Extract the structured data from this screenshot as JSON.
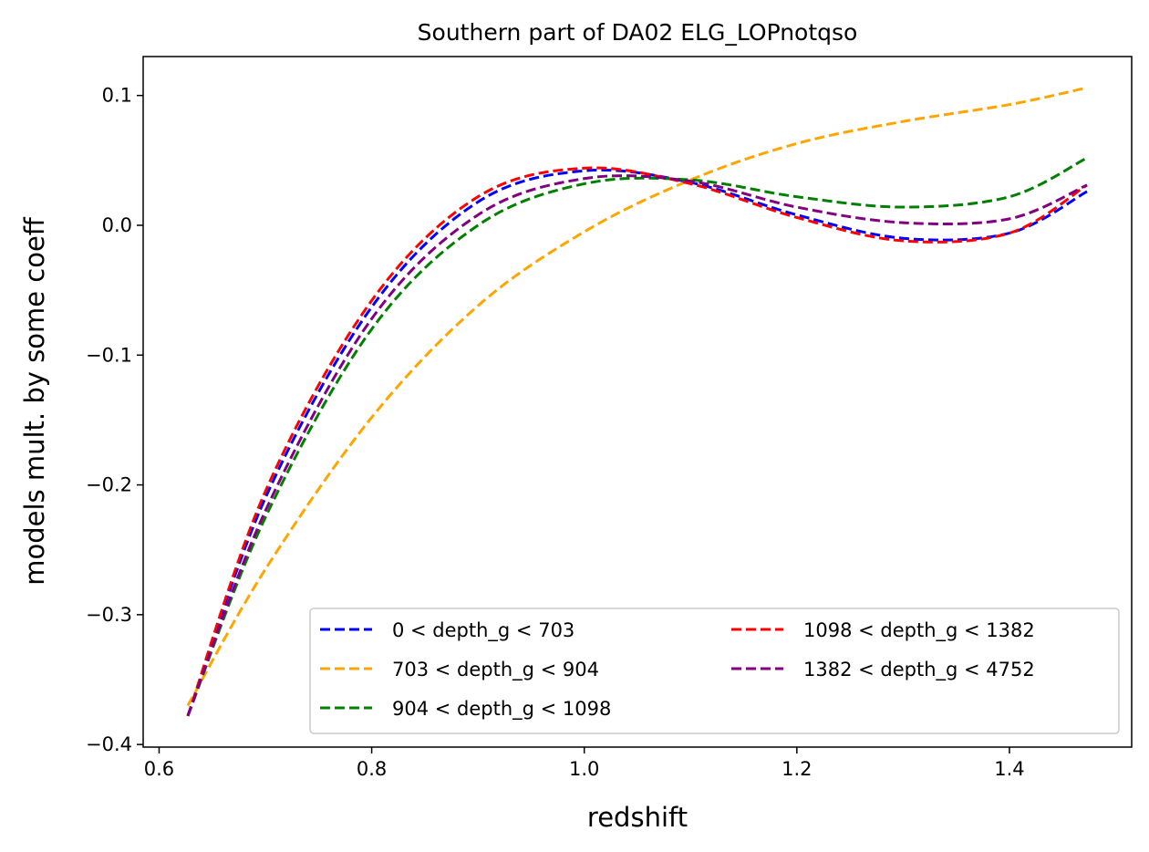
{
  "chart_data": {
    "type": "line",
    "title": "Southern part of DA02 ELG_LOPnotqso",
    "xlabel": "redshift",
    "ylabel": "models mult. by some coeff",
    "xlim": [
      0.585,
      1.515
    ],
    "ylim": [
      -0.402,
      0.13
    ],
    "xticks": [
      0.6,
      0.8,
      1.0,
      1.2,
      1.4
    ],
    "xtick_labels": [
      "0.6",
      "0.8",
      "1.0",
      "1.2",
      "1.4"
    ],
    "yticks": [
      -0.4,
      -0.3,
      -0.2,
      -0.1,
      0.0,
      0.1
    ],
    "ytick_labels": [
      "−0.4",
      "−0.3",
      "−0.2",
      "−0.1",
      "0.0",
      "0.1"
    ],
    "grid": false,
    "line_style": "dashed",
    "legend": {
      "location": "lower-right",
      "columns": 2
    },
    "x": [
      0.627,
      0.7,
      0.8,
      0.9,
      1.0,
      1.1,
      1.2,
      1.3,
      1.4,
      1.473
    ],
    "series": [
      {
        "name": "0 < depth_g < 703",
        "color": "#0000ff",
        "values": [
          -0.378,
          -0.21,
          -0.063,
          0.018,
          0.042,
          0.033,
          0.008,
          -0.01,
          -0.006,
          0.026
        ]
      },
      {
        "name": "703 < depth_g < 904",
        "color": "#ffa500",
        "values": [
          -0.37,
          -0.265,
          -0.148,
          -0.062,
          -0.005,
          0.035,
          0.063,
          0.08,
          0.093,
          0.106
        ]
      },
      {
        "name": "904 < depth_g < 1098",
        "color": "#008000",
        "values": [
          -0.378,
          -0.225,
          -0.08,
          0.0,
          0.032,
          0.035,
          0.022,
          0.014,
          0.022,
          0.052
        ]
      },
      {
        "name": "1098 < depth_g < 1382",
        "color": "#ff0000",
        "values": [
          -0.378,
          -0.205,
          -0.058,
          0.022,
          0.044,
          0.032,
          0.006,
          -0.012,
          -0.006,
          0.031
        ]
      },
      {
        "name": "1382 < depth_g < 4752",
        "color": "#800080",
        "values": [
          -0.378,
          -0.22,
          -0.072,
          0.008,
          0.036,
          0.034,
          0.014,
          0.002,
          0.005,
          0.031
        ]
      }
    ]
  }
}
